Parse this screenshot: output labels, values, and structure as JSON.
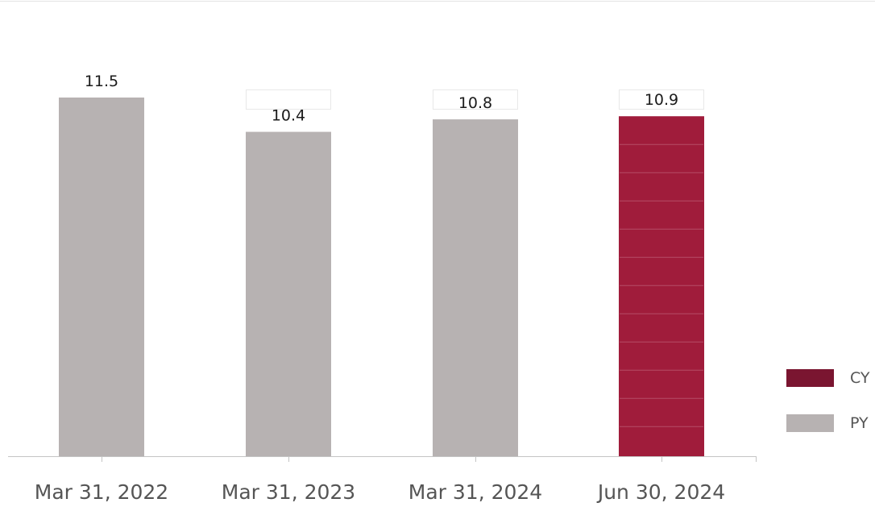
{
  "chart_data": {
    "type": "bar",
    "categories": [
      "Mar 31, 2022",
      "Mar 31, 2023",
      "Mar 31, 2024",
      "Jun 30, 2024"
    ],
    "values": [
      11.5,
      10.4,
      10.8,
      10.9
    ],
    "value_labels": [
      "11.5",
      "10.4",
      "10.8",
      "10.9"
    ],
    "bar_series": [
      "PY",
      "PY",
      "PY",
      "CY"
    ],
    "title": "",
    "xlabel": "",
    "ylabel": "",
    "ylim": [
      0,
      11.5
    ],
    "grid": false,
    "legend_position": "bottom-right",
    "legend": [
      {
        "label": "CY",
        "color": "#7a1530"
      },
      {
        "label": "PY",
        "color": "#b7b2b2"
      }
    ],
    "colors": {
      "CY": "#a01c3b",
      "PY": "#b7b2b2"
    }
  }
}
